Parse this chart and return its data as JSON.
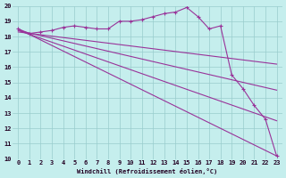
{
  "xlabel": "Windchill (Refroidissement éolien,°C)",
  "bg_color": "#c5eeed",
  "line_color": "#993399",
  "grid_color": "#99cccc",
  "xlim": [
    -0.5,
    23.5
  ],
  "ylim": [
    10,
    20
  ],
  "xticks": [
    0,
    1,
    2,
    3,
    4,
    5,
    6,
    7,
    8,
    9,
    10,
    11,
    12,
    13,
    14,
    15,
    16,
    17,
    18,
    19,
    20,
    21,
    22,
    23
  ],
  "yticks": [
    10,
    11,
    12,
    13,
    14,
    15,
    16,
    17,
    18,
    19,
    20
  ],
  "series1_x": [
    0,
    1,
    2,
    3,
    4,
    5,
    6,
    7,
    8,
    9,
    10,
    11,
    12,
    13,
    14,
    15,
    16,
    17,
    18,
    19,
    20,
    21,
    22,
    23
  ],
  "series1_y": [
    18.5,
    18.2,
    18.3,
    18.4,
    18.6,
    18.7,
    18.6,
    18.5,
    18.5,
    19.0,
    19.0,
    19.1,
    19.3,
    19.5,
    19.6,
    19.9,
    19.3,
    18.5,
    18.7,
    15.5,
    14.6,
    13.5,
    12.6,
    10.2
  ],
  "series2_x": [
    0,
    23
  ],
  "series2_y": [
    18.5,
    10.2
  ],
  "series3_x": [
    0,
    23
  ],
  "series3_y": [
    18.4,
    12.5
  ],
  "series4_x": [
    0,
    23
  ],
  "series4_y": [
    18.4,
    14.5
  ],
  "series5_x": [
    0,
    23
  ],
  "series5_y": [
    18.3,
    16.2
  ]
}
